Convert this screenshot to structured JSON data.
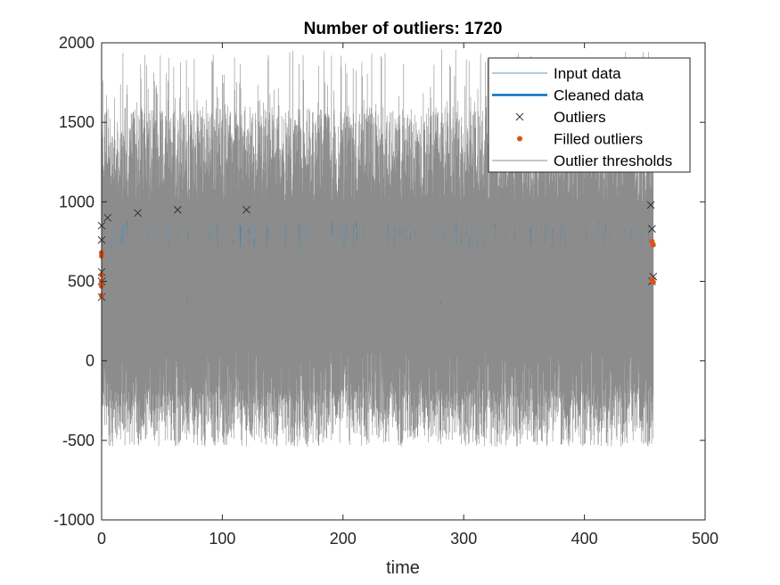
{
  "chart_data": {
    "type": "line",
    "title": "Number of outliers: 1720",
    "xlabel": "time",
    "ylabel": "",
    "xlim": [
      0,
      500
    ],
    "ylim": [
      -1000,
      2000
    ],
    "x_ticks": [
      0,
      100,
      200,
      300,
      400,
      500
    ],
    "x_tick_labels": [
      "0",
      "100",
      "200",
      "300",
      "400",
      "500"
    ],
    "y_ticks": [
      -1000,
      -500,
      0,
      500,
      1000,
      1500,
      2000
    ],
    "y_tick_labels": [
      "-1000",
      "-500",
      "0",
      "500",
      "1000",
      "1500",
      "2000"
    ],
    "grid": false,
    "legend_position": "top-right",
    "data_x_range": [
      0,
      457
    ],
    "series": [
      {
        "name": "Input data",
        "style": "line",
        "color": "#4c9dc9",
        "center": 560,
        "spread": [
          320,
          900
        ]
      },
      {
        "name": "Cleaned data",
        "style": "line",
        "color": "#0072bd",
        "center": 560,
        "spread": [
          350,
          880
        ]
      },
      {
        "name": "Outliers",
        "style": "marker-x",
        "color": "#333333",
        "points": [
          [
            0,
            850
          ],
          [
            0,
            760
          ],
          [
            0,
            560
          ],
          [
            0,
            500
          ],
          [
            0,
            400
          ],
          [
            5,
            900
          ],
          [
            30,
            930
          ],
          [
            63,
            950
          ],
          [
            120,
            950
          ],
          [
            455,
            980
          ],
          [
            456,
            830
          ],
          [
            457,
            530
          ],
          [
            456,
            500
          ]
        ]
      },
      {
        "name": "Filled outliers",
        "style": "marker-dot",
        "color": "#d95319",
        "points": [
          [
            0,
            680
          ],
          [
            0,
            660
          ],
          [
            0,
            540
          ],
          [
            0,
            500
          ],
          [
            0,
            470
          ],
          [
            0,
            410
          ],
          [
            456,
            750
          ],
          [
            457,
            730
          ],
          [
            456,
            510
          ],
          [
            457,
            495
          ]
        ]
      },
      {
        "name": "Outlier thresholds",
        "style": "line",
        "color": "#8c8c8c",
        "upper_range": [
          1000,
          1960
        ],
        "lower_range": [
          -540,
          60
        ]
      }
    ]
  }
}
